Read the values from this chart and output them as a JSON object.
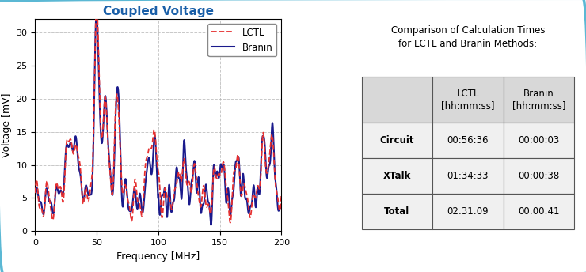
{
  "title": "Coupled Voltage",
  "xlabel": "Frequency [MHz]",
  "ylabel": "Voltage [mV]",
  "xlim": [
    0,
    200
  ],
  "ylim": [
    0,
    32
  ],
  "yticks": [
    0,
    5,
    10,
    15,
    20,
    25,
    30
  ],
  "xticks": [
    0,
    50,
    100,
    150,
    200
  ],
  "title_color": "#1a5fa8",
  "lctl_color": "#e63030",
  "branin_color": "#1a1a8c",
  "legend_labels": [
    "LCTL",
    "Branin"
  ],
  "table_title": "Comparison of Calculation Times\nfor LCTL and Branin Methods:",
  "table_headers": [
    "",
    "LCTL\n[hh:mm:ss]",
    "Branin\n[hh:mm:ss]"
  ],
  "table_rows": [
    [
      "Circuit",
      "00:56:36",
      "00:00:03"
    ],
    [
      "XTalk",
      "01:34:33",
      "00:00:38"
    ],
    [
      "Total",
      "02:31:09",
      "00:00:41"
    ]
  ],
  "background_color": "#ffffff",
  "border_color": "#5bb8d4",
  "grid_color": "#b0b0b0",
  "table_header_bg": "#d8d8d8",
  "table_row_bg": "#f0f0f0"
}
